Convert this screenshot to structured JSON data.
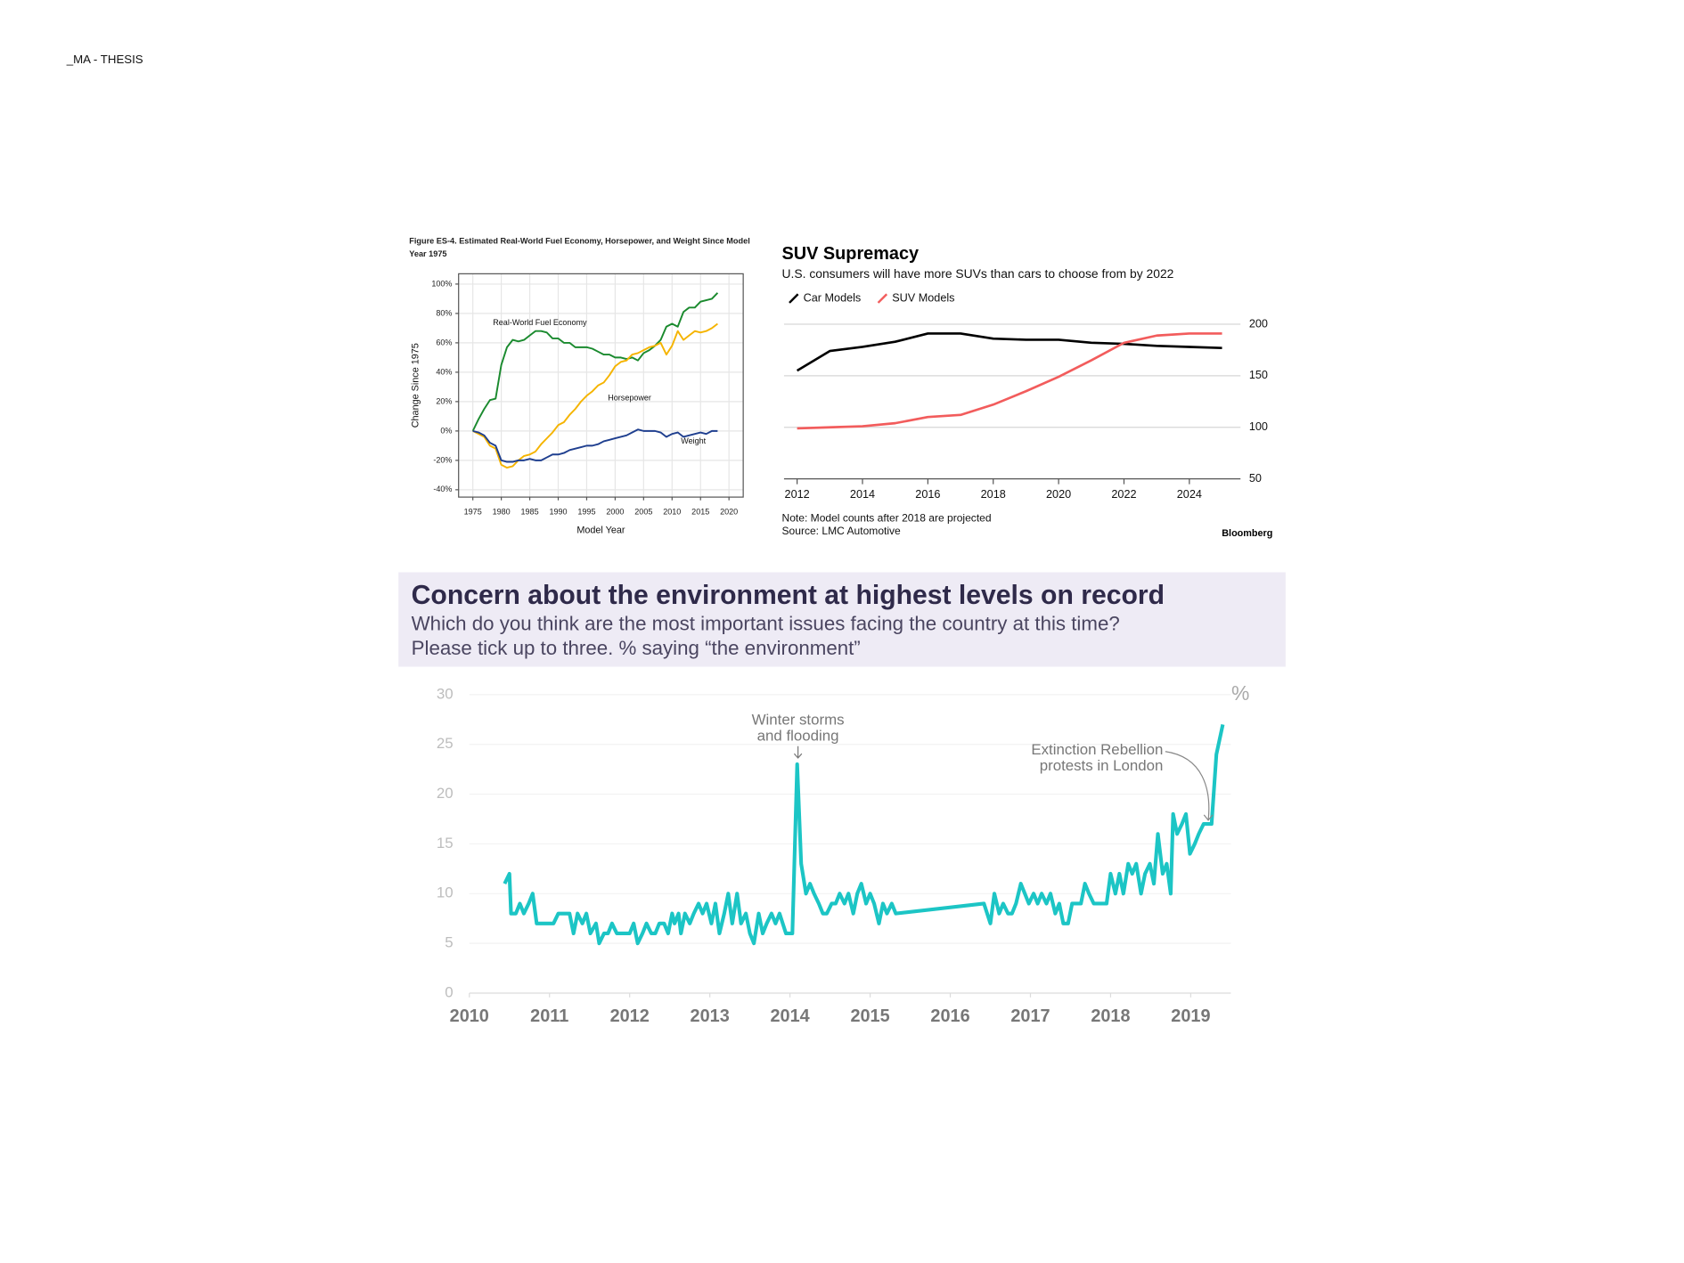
{
  "header": {
    "title": "_MA - THESIS"
  },
  "chart_data": [
    {
      "type": "line",
      "title": "Figure ES-4. Estimated Real-World Fuel Economy, Horsepower, and Weight Since Model Year 1975",
      "x_label": "Model Year",
      "y_label": "Change Since 1975",
      "x": [
        1975,
        1976,
        1977,
        1978,
        1979,
        1980,
        1981,
        1982,
        1983,
        1984,
        1985,
        1986,
        1987,
        1988,
        1989,
        1990,
        1991,
        1992,
        1993,
        1994,
        1995,
        1996,
        1997,
        1998,
        1999,
        2000,
        2001,
        2002,
        2003,
        2004,
        2005,
        2006,
        2007,
        2008,
        2009,
        2010,
        2011,
        2012,
        2013,
        2014,
        2015,
        2016,
        2017,
        2018
      ],
      "series": [
        {
          "name": "Real-World Fuel Economy",
          "color": "#1a8a2e",
          "values": [
            0,
            8,
            15,
            21,
            22,
            45,
            57,
            62,
            61,
            62,
            65,
            68,
            68,
            67,
            63,
            63,
            60,
            60,
            57,
            57,
            57,
            56,
            54,
            52,
            52,
            50,
            50,
            49,
            50,
            48,
            53,
            55,
            58,
            62,
            71,
            73,
            71,
            81,
            84,
            84,
            88,
            89,
            90,
            94
          ]
        },
        {
          "name": "Horsepower",
          "color": "#f5b400",
          "values": [
            0,
            -2,
            -4,
            -10,
            -12,
            -23,
            -25,
            -24,
            -20,
            -17,
            -16,
            -14,
            -9,
            -5,
            -1,
            4,
            6,
            11,
            15,
            20,
            24,
            27,
            31,
            33,
            38,
            44,
            47,
            48,
            52,
            53,
            55,
            57,
            58,
            60,
            52,
            58,
            68,
            62,
            65,
            68,
            67,
            68,
            70,
            73
          ]
        },
        {
          "name": "Weight",
          "color": "#1f3f8f",
          "values": [
            0,
            -1,
            -3,
            -8,
            -10,
            -20,
            -21,
            -21,
            -20,
            -20,
            -19,
            -20,
            -20,
            -18,
            -16,
            -16,
            -15,
            -13,
            -12,
            -11,
            -10,
            -10,
            -9,
            -7,
            -6,
            -5,
            -4,
            -3,
            -1,
            1,
            0,
            0,
            0,
            -1,
            -4,
            -2,
            -1,
            -4,
            -3,
            -2,
            -1,
            -2,
            0,
            0
          ]
        }
      ],
      "xlim": [
        1972.5,
        2022.5
      ],
      "xticks": [
        1975,
        1980,
        1985,
        1990,
        1995,
        2000,
        2005,
        2010,
        2015,
        2020
      ],
      "ylim": [
        -45,
        107
      ],
      "yticks": [
        {
          "value": -40,
          "label": "-40%"
        },
        {
          "value": -20,
          "label": "-20%"
        },
        {
          "value": 0,
          "label": "0%"
        },
        {
          "value": 20,
          "label": "20%"
        },
        {
          "value": 40,
          "label": "40%"
        },
        {
          "value": 60,
          "label": "60%"
        },
        {
          "value": 80,
          "label": "80%"
        },
        {
          "value": 100,
          "label": "100%"
        }
      ],
      "grid": true,
      "legend": "inline"
    },
    {
      "type": "line",
      "title": "SUV Supremacy",
      "subtitle": "U.S. consumers will have more SUVs than cars to choose from by 2022",
      "note": "Note: Model counts after 2018 are projected",
      "source": "Source: LMC Automotive",
      "brand": "Bloomberg",
      "x": [
        2012,
        2013,
        2014,
        2015,
        2016,
        2017,
        2018,
        2019,
        2020,
        2021,
        2022,
        2023,
        2024,
        2025
      ],
      "series": [
        {
          "name": "Car Models",
          "color": "#000000",
          "values": [
            155,
            174,
            178,
            183,
            191,
            191,
            186,
            185,
            185,
            182,
            181,
            179,
            178,
            177
          ]
        },
        {
          "name": "SUV Models",
          "color": "#f25c5c",
          "values": [
            99,
            100,
            101,
            104,
            110,
            112,
            122,
            135,
            149,
            165,
            182,
            189,
            191,
            191
          ]
        }
      ],
      "xlim": [
        2011.6,
        2025.4
      ],
      "xticks": [
        2012,
        2014,
        2016,
        2018,
        2020,
        2022,
        2024
      ],
      "ylim": [
        50,
        200
      ],
      "yticks": [
        50,
        100,
        150,
        200
      ],
      "grid": true,
      "y_axis_side": "right",
      "legend": "top-left"
    },
    {
      "type": "line",
      "title": "Concern about the environment at highest levels on record",
      "subtitle": [
        "Which do you think are the most important issues facing the country at this time?",
        "Please tick up to three. % saying “the environment”"
      ],
      "y_unit": "%",
      "annotations": [
        [
          "Winter storms",
          "and flooding"
        ],
        [
          "Extinction Rebellion",
          "protests in London"
        ]
      ],
      "color": "#1cc5c5",
      "x": [
        2010.44,
        2010.5,
        2010.52,
        2010.58,
        2010.63,
        2010.68,
        2010.74,
        2010.79,
        2010.84,
        2010.91,
        2010.98,
        2011.05,
        2011.11,
        2011.18,
        2011.25,
        2011.3,
        2011.35,
        2011.41,
        2011.46,
        2011.51,
        2011.58,
        2011.62,
        2011.68,
        2011.73,
        2011.78,
        2011.84,
        2011.89,
        2011.94,
        2012.0,
        2012.05,
        2012.1,
        2012.16,
        2012.21,
        2012.27,
        2012.32,
        2012.37,
        2012.43,
        2012.48,
        2012.53,
        2012.56,
        2012.61,
        2012.64,
        2012.69,
        2012.75,
        2012.8,
        2012.86,
        2012.91,
        2012.96,
        2013.02,
        2013.07,
        2013.12,
        2013.18,
        2013.23,
        2013.28,
        2013.34,
        2013.39,
        2013.45,
        2013.5,
        2013.55,
        2013.61,
        2013.66,
        2013.71,
        2013.77,
        2013.82,
        2013.87,
        2013.95,
        2014.03,
        2014.09,
        2014.14,
        2014.2,
        2014.25,
        2014.3,
        2014.36,
        2014.41,
        2014.46,
        2014.52,
        2014.57,
        2014.62,
        2014.68,
        2014.73,
        2014.79,
        2014.84,
        2014.89,
        2014.95,
        2015.0,
        2015.05,
        2015.11,
        2015.16,
        2015.21,
        2015.27,
        2015.32,
        2016.42,
        2016.5,
        2016.55,
        2016.61,
        2016.66,
        2016.72,
        2016.77,
        2016.82,
        2016.88,
        2016.93,
        2016.98,
        2017.04,
        2017.09,
        2017.14,
        2017.2,
        2017.25,
        2017.31,
        2017.36,
        2017.41,
        2017.47,
        2017.52,
        2017.57,
        2017.63,
        2017.68,
        2017.73,
        2017.79,
        2017.95,
        2018.0,
        2018.06,
        2018.11,
        2018.16,
        2018.22,
        2018.27,
        2018.32,
        2018.38,
        2018.43,
        2018.49,
        2018.54,
        2018.59,
        2018.65,
        2018.7,
        2018.75,
        2018.78,
        2018.83,
        2018.89,
        2018.94,
        2018.99,
        2019.05,
        2019.1,
        2019.16,
        2019.21,
        2019.26,
        2019.32,
        2019.4
      ],
      "values": [
        11,
        12,
        8,
        8,
        9,
        8,
        9,
        10,
        7,
        7,
        7,
        7,
        8,
        8,
        8,
        6,
        8,
        7,
        8,
        6,
        7,
        5,
        6,
        6,
        7,
        6,
        6,
        6,
        6,
        7,
        5,
        6,
        7,
        6,
        6,
        7,
        7,
        6,
        8,
        7,
        8,
        6,
        8,
        7,
        8,
        9,
        8,
        9,
        7,
        9,
        6,
        8,
        10,
        7,
        10,
        7,
        8,
        6,
        5,
        8,
        6,
        7,
        8,
        7,
        8,
        6,
        6,
        23,
        13,
        10,
        11,
        10,
        9,
        8,
        8,
        9,
        9,
        10,
        9,
        10,
        8,
        10,
        11,
        9,
        10,
        9,
        7,
        9,
        8,
        9,
        8,
        9,
        7,
        10,
        8,
        9,
        8,
        8,
        9,
        11,
        10,
        9,
        10,
        9,
        10,
        9,
        10,
        8,
        9,
        7,
        7,
        9,
        9,
        9,
        11,
        10,
        9,
        9,
        12,
        10,
        12,
        10,
        13,
        12,
        13,
        10,
        12,
        13,
        11,
        16,
        12,
        13,
        10,
        18,
        16,
        17,
        18,
        14,
        15,
        16,
        17,
        17,
        17,
        24,
        27
      ],
      "xlim": [
        2010,
        2019.5
      ],
      "xticks": [
        2010,
        2011,
        2012,
        2013,
        2014,
        2015,
        2016,
        2017,
        2018,
        2019
      ],
      "ylim": [
        0,
        30
      ],
      "yticks": [
        0,
        5,
        10,
        15,
        20,
        25,
        30
      ],
      "grid": true
    }
  ]
}
